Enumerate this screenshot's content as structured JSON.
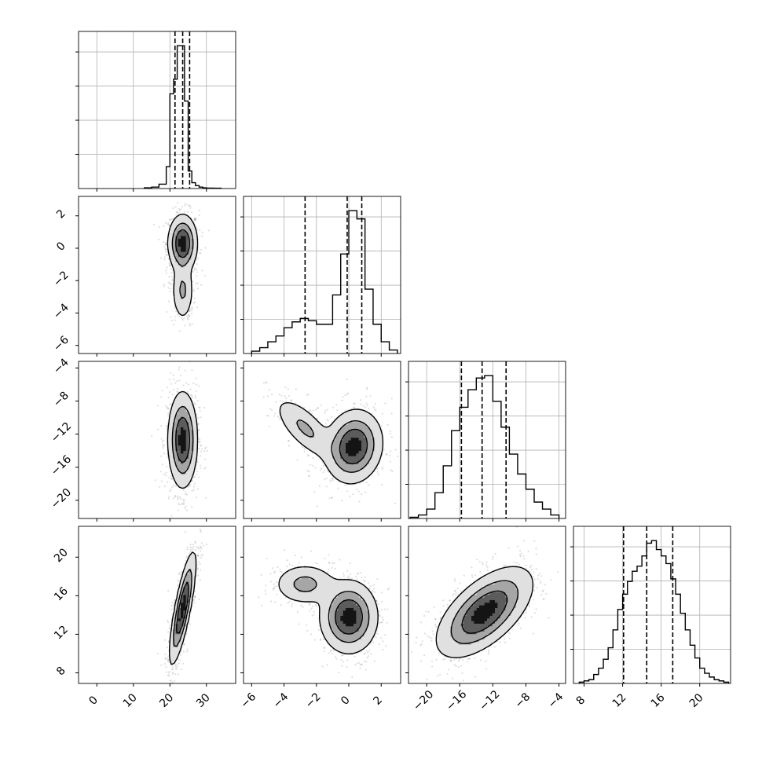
{
  "figure": {
    "style": {
      "line_color": "#000000",
      "grid_color": "#b0b0b0",
      "background": "#ffffff",
      "quantile_line": "dashed"
    }
  },
  "chart_data": {
    "type": "corner",
    "parameters": 4,
    "grid": true,
    "axes": [
      {
        "name": "",
        "range": [
          -5,
          38
        ],
        "ticks": [
          0,
          10,
          20,
          30
        ],
        "tick_labels": [
          "0",
          "10",
          "20",
          "30"
        ]
      },
      {
        "name": "",
        "range": [
          -6.5,
          3.2
        ],
        "ticks": [
          -6,
          -4,
          -2,
          0,
          2
        ],
        "tick_labels": [
          "−6",
          "−4",
          "−2",
          "0",
          "2"
        ]
      },
      {
        "name": "",
        "range": [
          -22.2,
          -3.2
        ],
        "ticks": [
          -20,
          -16,
          -12,
          -8,
          -4
        ],
        "tick_labels": [
          "−20",
          "−16",
          "−12",
          "−8",
          "−4"
        ]
      },
      {
        "name": "",
        "range": [
          6.9,
          23.2
        ],
        "ticks": [
          8,
          12,
          16,
          20
        ],
        "tick_labels": [
          "8",
          "12",
          "16",
          "20"
        ]
      }
    ],
    "histograms": [
      {
        "bin_edges": [
          13,
          15,
          17,
          19,
          20,
          21,
          22,
          23,
          24,
          25,
          26,
          27,
          28,
          29,
          30,
          32,
          34
        ],
        "counts": [
          0.5,
          1,
          3,
          15,
          65,
          75,
          98,
          98,
          60,
          12,
          4,
          2,
          1,
          0.5,
          0.3,
          0.2
        ],
        "quantiles": [
          21.4,
          23.5,
          25.4
        ]
      },
      {
        "bin_edges": [
          -6.0,
          -5.5,
          -5.0,
          -4.5,
          -4.0,
          -3.5,
          -3.0,
          -2.5,
          -2.0,
          -1.5,
          -1.0,
          -0.5,
          0.0,
          0.5,
          1.0,
          1.5,
          2.0,
          2.5,
          3.0
        ],
        "counts": [
          2,
          5,
          10,
          15,
          22,
          27,
          30,
          28,
          25,
          25,
          50,
          85,
          122,
          115,
          55,
          25,
          10,
          3
        ],
        "quantiles": [
          -2.7,
          -0.1,
          0.8
        ]
      },
      {
        "bin_edges": [
          -22,
          -21,
          -20,
          -19,
          -18,
          -17,
          -16,
          -15,
          -14,
          -13,
          -12,
          -11,
          -10,
          -9,
          -8,
          -7,
          -6,
          -5,
          -4
        ],
        "counts": [
          1,
          3,
          8,
          22,
          45,
          75,
          95,
          110,
          120,
          122,
          100,
          78,
          55,
          38,
          25,
          14,
          8,
          3
        ],
        "quantiles": [
          -15.8,
          -13.3,
          -10.4
        ]
      },
      {
        "bin_edges": [
          7.5,
          8,
          8.5,
          9,
          9.5,
          10,
          10.5,
          11,
          11.5,
          12,
          12.5,
          13,
          13.5,
          14,
          14.5,
          15,
          15.5,
          16,
          16.5,
          17,
          17.5,
          18,
          18.5,
          19,
          19.5,
          20,
          20.5,
          21,
          21.5,
          22,
          22.5,
          23
        ],
        "counts": [
          1,
          2,
          3,
          7,
          12,
          19,
          28,
          42,
          58,
          70,
          80,
          88,
          92,
          100,
          110,
          112,
          105,
          100,
          94,
          82,
          70,
          55,
          42,
          30,
          20,
          12,
          8,
          5,
          3,
          2,
          1
        ],
        "quantiles": [
          12.1,
          14.5,
          17.2
        ]
      }
    ],
    "pair_panels": [
      {
        "x_index": 0,
        "y_index": 1,
        "modes": [
          {
            "x": 23.5,
            "y": 0.3,
            "sx": 1.8,
            "sy": 0.8,
            "r": 0.0,
            "w": 1.0
          },
          {
            "x": 23.5,
            "y": -2.6,
            "sx": 1.4,
            "sy": 0.9,
            "r": 0.0,
            "w": 0.35
          }
        ]
      },
      {
        "x_index": 0,
        "y_index": 2,
        "modes": [
          {
            "x": 23.5,
            "y": -12.7,
            "sx": 1.8,
            "sy": 2.6,
            "r": 0.0,
            "w": 1.0
          }
        ]
      },
      {
        "x_index": 0,
        "y_index": 3,
        "modes": [
          {
            "x": 23.5,
            "y": 14.7,
            "sx": 1.6,
            "sy": 2.6,
            "r": 0.8,
            "w": 1.0
          }
        ]
      },
      {
        "x_index": 1,
        "y_index": 2,
        "modes": [
          {
            "x": 0.3,
            "y": -13.5,
            "sx": 0.8,
            "sy": 2.0,
            "r": 0.1,
            "w": 1.0
          },
          {
            "x": -2.7,
            "y": -11.3,
            "sx": 0.9,
            "sy": 1.8,
            "r": -0.7,
            "w": 0.35
          }
        ]
      },
      {
        "x_index": 1,
        "y_index": 3,
        "modes": [
          {
            "x": 0.0,
            "y": 13.8,
            "sx": 0.8,
            "sy": 1.7,
            "r": 0.0,
            "w": 1.0
          },
          {
            "x": -2.7,
            "y": 17.2,
            "sx": 0.9,
            "sy": 1.0,
            "r": 0.0,
            "w": 0.4
          }
        ]
      },
      {
        "x_index": 2,
        "y_index": 3,
        "modes": [
          {
            "x": -13.0,
            "y": 14.3,
            "sx": 2.6,
            "sy": 2.1,
            "r": 0.6,
            "w": 1.0
          }
        ]
      }
    ]
  }
}
